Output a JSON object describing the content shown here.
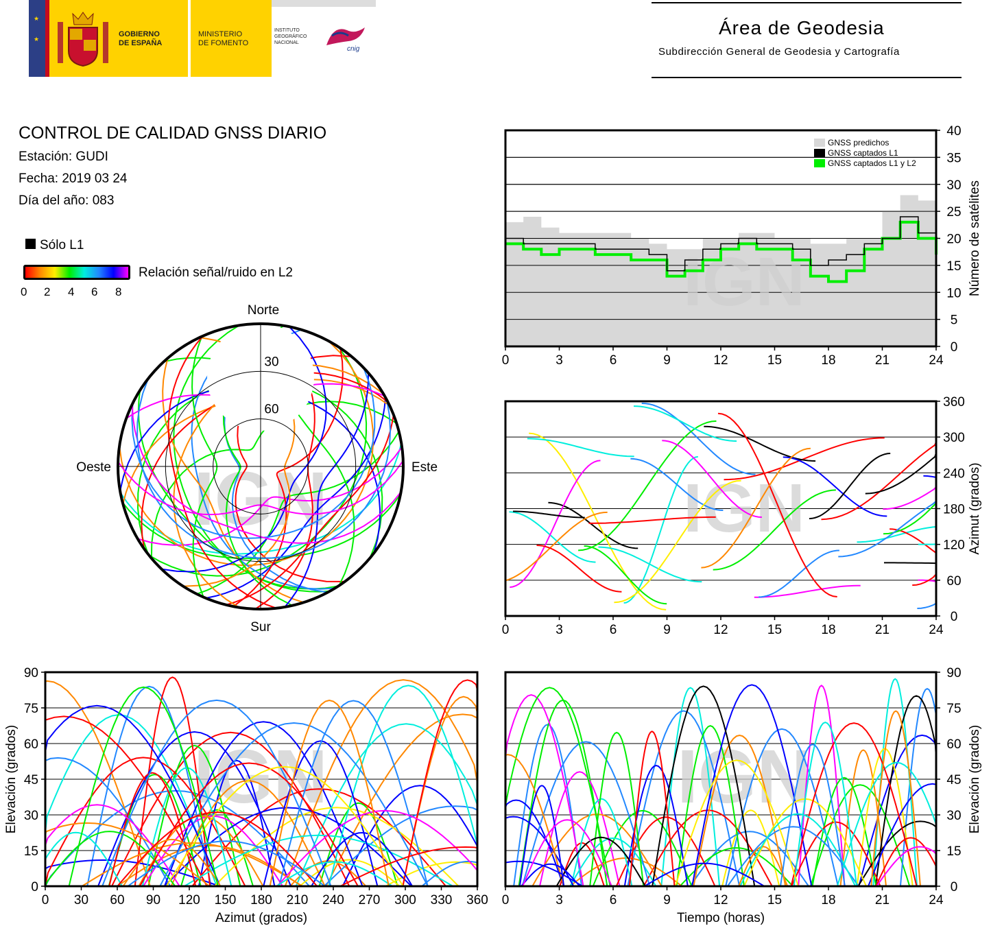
{
  "header": {
    "gov_line1": "GOBIERNO",
    "gov_line2": "DE ESPAÑA",
    "min_line1": "MINISTERIO",
    "min_line2": "DE FOMENTO",
    "ign_line1": "INSTITUTO",
    "ign_line2": "GEOGRÁFICO",
    "ign_line3": "NACIONAL",
    "cnig": "cnig",
    "area_title": "Área de Geodesia",
    "area_subtitle": "Subdirección General de Geodesia y Cartografía"
  },
  "report": {
    "title": "CONTROL DE CALIDAD GNSS DIARIO",
    "station": "Estación: GUDI",
    "date": "Fecha: 2019 03 24",
    "doy": "Día del año: 083"
  },
  "legend": {
    "l1_only": "Sólo L1",
    "snr_label": "Relación señal/ruido en L2",
    "snr_ticks": [
      "0",
      "2",
      "4",
      "6",
      "8"
    ]
  },
  "colors": {
    "predicted": "#d8d8d8",
    "captured_l1": "#000000",
    "captured_l1l2": "#00ee00",
    "snr_scale": [
      "#ff0000",
      "#ff8800",
      "#ffee00",
      "#00ee00",
      "#00eedd",
      "#2288ff",
      "#0000ff",
      "#ff00ff"
    ]
  },
  "watermark": "IGN",
  "chart_data": [
    {
      "type": "polar-skyplot",
      "directions": {
        "north": "Norte",
        "south": "Sur",
        "west": "Oeste",
        "east": "Este"
      },
      "ring_labels": [
        "30",
        "60"
      ],
      "rings": [
        30,
        60
      ]
    },
    {
      "type": "line",
      "ylabel": "Número de satélites",
      "xticks": [
        "0",
        "3",
        "6",
        "9",
        "12",
        "15",
        "18",
        "21",
        "24"
      ],
      "yticks": [
        "0",
        "5",
        "10",
        "15",
        "20",
        "25",
        "30",
        "35",
        "40"
      ],
      "xlim": [
        0,
        24
      ],
      "ylim": [
        0,
        40
      ],
      "series": [
        {
          "name": "GNSS predichos",
          "x": [
            0,
            1,
            2,
            3,
            4,
            5,
            6,
            7,
            8,
            9,
            10,
            11,
            12,
            13,
            14,
            15,
            16,
            17,
            18,
            19,
            20,
            21,
            22,
            23,
            24
          ],
          "values": [
            23,
            24,
            22,
            21,
            21,
            21,
            21,
            20,
            19,
            18,
            18,
            20,
            20,
            21,
            21,
            20,
            20,
            19,
            19,
            20,
            20,
            25,
            28,
            27,
            24
          ]
        },
        {
          "name": "GNSS captados L1",
          "x": [
            0,
            1,
            2,
            3,
            4,
            5,
            6,
            7,
            8,
            9,
            10,
            11,
            12,
            13,
            14,
            15,
            16,
            17,
            18,
            19,
            20,
            21,
            22,
            23,
            24
          ],
          "values": [
            20,
            19,
            19,
            19,
            19,
            18,
            18,
            18,
            17,
            14,
            16,
            18,
            19,
            20,
            19,
            19,
            18,
            15,
            16,
            17,
            19,
            20,
            24,
            21,
            19
          ]
        },
        {
          "name": "GNSS captados L1 y L2",
          "x": [
            0,
            1,
            2,
            3,
            4,
            5,
            6,
            7,
            8,
            9,
            10,
            11,
            12,
            13,
            14,
            15,
            16,
            17,
            18,
            19,
            20,
            21,
            22,
            23,
            24
          ],
          "values": [
            19,
            18,
            17,
            18,
            18,
            17,
            17,
            16,
            16,
            13,
            14,
            16,
            18,
            19,
            18,
            18,
            16,
            13,
            12,
            14,
            18,
            20,
            23,
            20,
            17
          ]
        }
      ]
    },
    {
      "type": "scatter",
      "ylabel": "Azimut (grados)",
      "xticks": [
        "0",
        "3",
        "6",
        "9",
        "12",
        "15",
        "18",
        "21",
        "24"
      ],
      "yticks": [
        "0",
        "60",
        "120",
        "180",
        "240",
        "300",
        "360"
      ],
      "xlim": [
        0,
        24
      ],
      "ylim": [
        0,
        360
      ]
    },
    {
      "type": "scatter",
      "xlabel": "Azimut (grados)",
      "ylabel": "Elevación (grados)",
      "xticks": [
        "0",
        "30",
        "60",
        "90",
        "120",
        "150",
        "180",
        "210",
        "240",
        "270",
        "300",
        "330",
        "360"
      ],
      "yticks": [
        "0",
        "15",
        "30",
        "45",
        "60",
        "75",
        "90"
      ],
      "xlim": [
        0,
        360
      ],
      "ylim": [
        0,
        90
      ]
    },
    {
      "type": "scatter",
      "xlabel": "Tiempo (horas)",
      "ylabel": "Elevación (grados)",
      "xticks": [
        "0",
        "3",
        "6",
        "9",
        "12",
        "15",
        "18",
        "21",
        "24"
      ],
      "yticks": [
        "0",
        "15",
        "30",
        "45",
        "60",
        "75",
        "90"
      ],
      "xlim": [
        0,
        24
      ],
      "ylim": [
        0,
        90
      ]
    }
  ]
}
